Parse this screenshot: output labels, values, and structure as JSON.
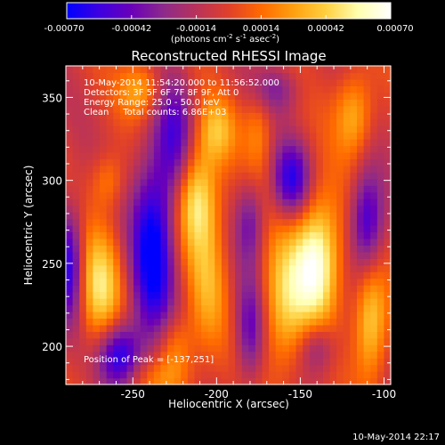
{
  "chart_data": {
    "type": "heatmap",
    "title": "Reconstructed RHESSI Image",
    "xlabel": "Heliocentric X (arcsec)",
    "ylabel": "Heliocentric Y (arcsec)",
    "xlim": [
      -290,
      -96
    ],
    "ylim": [
      177,
      369
    ],
    "xticks": [
      -250,
      -200,
      -150,
      -100
    ],
    "yticks": [
      200,
      250,
      300,
      350
    ],
    "colorbar": {
      "min": -0.0007,
      "max": 0.0007,
      "ticks": [
        "-0.00070",
        "-0.00042",
        "-0.00014",
        "0.00014",
        "0.00042",
        "0.00070"
      ],
      "unit_label": "(photons cm",
      "unit_sup1": "-2",
      "unit_mid": " s",
      "unit_sup2": "-1",
      "unit_mid2": " asec",
      "unit_sup3": "-2",
      "unit_end": ")",
      "colors": [
        "#0000ff",
        "#3d00e0",
        "#6a00b8",
        "#8e2a8a",
        "#b8325a",
        "#e0402a",
        "#ff6a00",
        "#ffa010",
        "#ffd040",
        "#ffffb0",
        "#ffffff"
      ]
    },
    "annotations": {
      "line1": "10-May-2014 11:54:20.000 to 11:56:52.000",
      "line2": "Detectors: 3F 5F 6F 7F 8F 9F, Att 0",
      "line3": "Energy Range: 25.0 - 50.0 keV",
      "line4": "Clean     Total counts: 6.86E+03",
      "peak": "Position of Peak = [-137,251]"
    },
    "peak": {
      "x": -137,
      "y": 251
    },
    "components": [
      {
        "x": -140,
        "y": 252,
        "sx": 10,
        "sy": 28,
        "amp": 1.0
      },
      {
        "x": -212,
        "y": 290,
        "sx": 9,
        "sy": 22,
        "amp": 0.8
      },
      {
        "x": -205,
        "y": 240,
        "sx": 8,
        "sy": 30,
        "amp": 0.45
      },
      {
        "x": -160,
        "y": 225,
        "sx": 10,
        "sy": 30,
        "amp": 0.6
      },
      {
        "x": -200,
        "y": 330,
        "sx": 8,
        "sy": 14,
        "amp": 0.5
      },
      {
        "x": -108,
        "y": 215,
        "sx": 7,
        "sy": 25,
        "amp": 0.7
      },
      {
        "x": -118,
        "y": 340,
        "sx": 8,
        "sy": 18,
        "amp": 0.55
      },
      {
        "x": -270,
        "y": 235,
        "sx": 9,
        "sy": 25,
        "amp": 0.7
      },
      {
        "x": -245,
        "y": 355,
        "sx": 9,
        "sy": 12,
        "amp": 0.5
      },
      {
        "x": -265,
        "y": 300,
        "sx": 7,
        "sy": 12,
        "amp": 0.35
      },
      {
        "x": -225,
        "y": 200,
        "sx": 8,
        "sy": 14,
        "amp": 0.45
      },
      {
        "x": -175,
        "y": 330,
        "sx": 6,
        "sy": 20,
        "amp": 0.35
      },
      {
        "x": -235,
        "y": 180,
        "sx": 15,
        "sy": 10,
        "amp": 0.3
      },
      {
        "x": -238,
        "y": 258,
        "sx": 9,
        "sy": 40,
        "amp": -1.0
      },
      {
        "x": -258,
        "y": 195,
        "sx": 9,
        "sy": 14,
        "amp": -0.9
      },
      {
        "x": -288,
        "y": 250,
        "sx": 6,
        "sy": 25,
        "amp": -0.8
      },
      {
        "x": -110,
        "y": 275,
        "sx": 7,
        "sy": 22,
        "amp": -0.8
      },
      {
        "x": -155,
        "y": 300,
        "sx": 8,
        "sy": 16,
        "amp": -0.8
      },
      {
        "x": -180,
        "y": 210,
        "sx": 6,
        "sy": 22,
        "amp": -0.6
      },
      {
        "x": -140,
        "y": 200,
        "sx": 8,
        "sy": 12,
        "amp": -0.5
      },
      {
        "x": -225,
        "y": 325,
        "sx": 8,
        "sy": 28,
        "amp": -0.6
      },
      {
        "x": -180,
        "y": 275,
        "sx": 6,
        "sy": 18,
        "amp": -0.5
      },
      {
        "x": -165,
        "y": 355,
        "sx": 10,
        "sy": 10,
        "amp": -0.4
      }
    ]
  },
  "footer": {
    "timestamp": "10-May-2014 22:17"
  }
}
